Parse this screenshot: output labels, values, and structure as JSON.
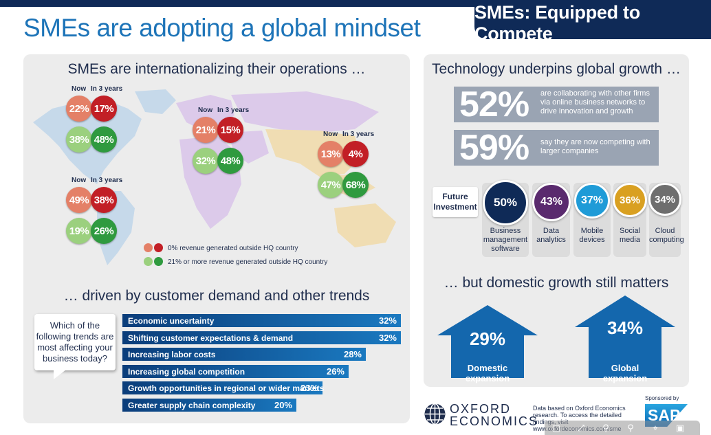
{
  "header": {
    "title": "SMEs are adopting a global mindset",
    "tag": "SMEs: Equipped to Compete"
  },
  "intl": {
    "heading": "SMEs are internationalizing their operations …",
    "regions": [
      {
        "name": "north-america",
        "now_label": "Now",
        "future_label": "In 3 years",
        "red_now": "22%",
        "red_future": "17%",
        "green_now": "38%",
        "green_future": "48%"
      },
      {
        "name": "europe",
        "now_label": "Now",
        "future_label": "In 3 years",
        "red_now": "21%",
        "red_future": "15%",
        "green_now": "32%",
        "green_future": "48%"
      },
      {
        "name": "asia-pacific",
        "now_label": "Now",
        "future_label": "In 3 years",
        "red_now": "13%",
        "red_future": "4%",
        "green_now": "47%",
        "green_future": "68%"
      },
      {
        "name": "latin-america",
        "now_label": "Now",
        "future_label": "In 3 years",
        "red_now": "49%",
        "red_future": "38%",
        "green_now": "19%",
        "green_future": "26%"
      }
    ],
    "legend": {
      "red": "0% revenue generated outside HQ country",
      "green": "21% or more revenue generated outside HQ country"
    },
    "colors": {
      "light_red": "#e48067",
      "dark_red": "#c21f26",
      "light_green": "#9bd07e",
      "dark_green": "#2f9a3f"
    }
  },
  "trends": {
    "heading": "… driven by customer demand and other trends",
    "question": "Which of the following trends are most affecting your business today?",
    "bars": [
      {
        "label": "Economic uncertainty",
        "value": 32,
        "display": "32%"
      },
      {
        "label": "Shifting customer expectations & demand",
        "value": 32,
        "display": "32%"
      },
      {
        "label": "Increasing labor costs",
        "value": 28,
        "display": "28%"
      },
      {
        "label": "Increasing global competition",
        "value": 26,
        "display": "26%"
      },
      {
        "label": "Growth opportunities in regional or wider markets",
        "value": 23,
        "display": "23%"
      },
      {
        "label": "Greater supply chain complexity",
        "value": 20,
        "display": "20%"
      }
    ]
  },
  "tech": {
    "heading": "Technology underpins global growth …",
    "stats": [
      {
        "value": "52%",
        "text": "are collaborating with other firms via online business networks to drive innovation and growth"
      },
      {
        "value": "59%",
        "text": "say they are now competing with larger companies"
      }
    ],
    "future_label": "Future Investment",
    "investments": [
      {
        "value": "50%",
        "label": "Business management software",
        "color": "#0f2a57"
      },
      {
        "value": "43%",
        "label": "Data analytics",
        "color": "#5a2a6e"
      },
      {
        "value": "37%",
        "label": "Mobile devices",
        "color": "#1f9bd7"
      },
      {
        "value": "36%",
        "label": "Social media",
        "color": "#d9a021"
      },
      {
        "value": "34%",
        "label": "Cloud computing",
        "color": "#6e6e6e"
      }
    ]
  },
  "domestic": {
    "heading": "… but domestic growth still matters",
    "items": [
      {
        "value": "29%",
        "label": "Domestic expansion"
      },
      {
        "value": "34%",
        "label": "Global expansion"
      }
    ]
  },
  "footer": {
    "oxford_line1": "OXFORD",
    "oxford_line2": "ECONOMICS",
    "note": "Data based on Oxford Economics research. To access the detailed findings, visit www.oxfordeconomics.com/sme",
    "sponsored": "Sponsored by",
    "sap": "SAP"
  }
}
